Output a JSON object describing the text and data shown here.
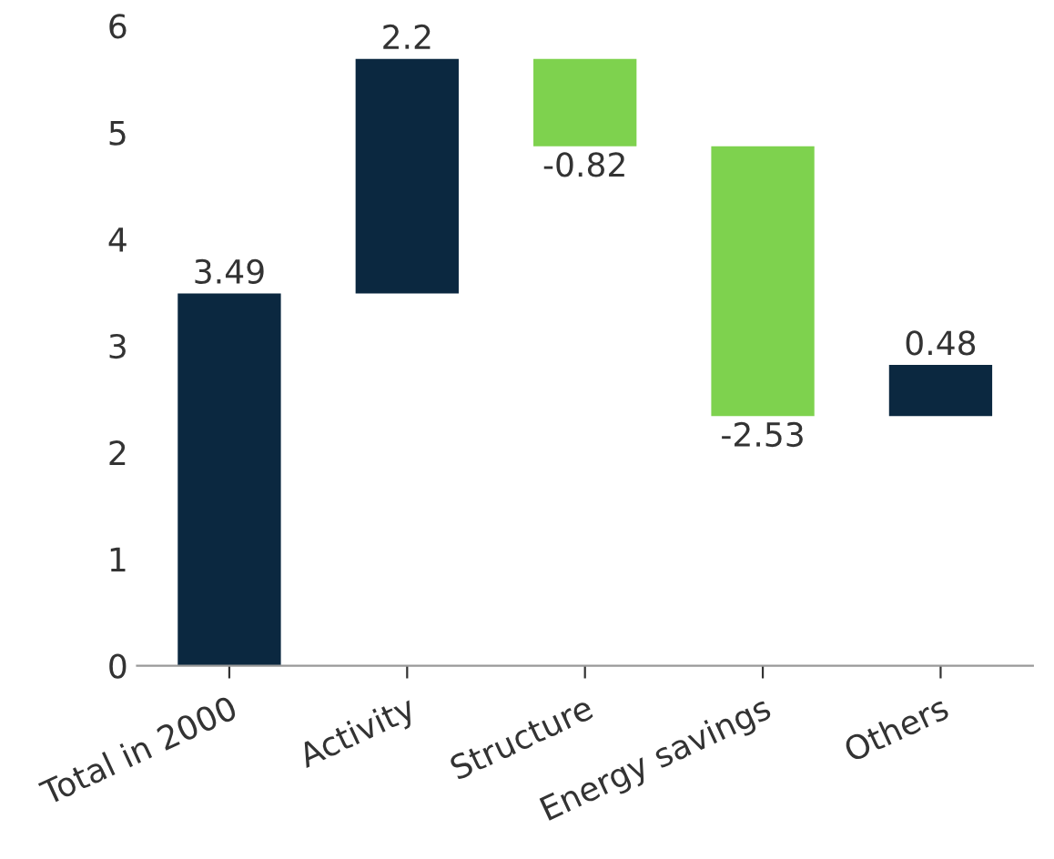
{
  "chart_data": {
    "type": "bar",
    "categories": [
      "Total in 2000",
      "Activity",
      "Structure",
      "Energy savings",
      "Others"
    ],
    "values": [
      3.49,
      2.2,
      -0.82,
      -2.53,
      0.48
    ],
    "base": [
      0,
      3.49,
      5.69,
      4.87,
      2.34
    ],
    "colors": [
      "#0b2840",
      "#0b2840",
      "#7ed24e",
      "#7ed24e",
      "#0b2840"
    ],
    "ylim": [
      0,
      6
    ],
    "yticks": [
      0,
      1,
      2,
      3,
      4,
      5,
      6
    ],
    "data_labels": true,
    "grid": false
  }
}
